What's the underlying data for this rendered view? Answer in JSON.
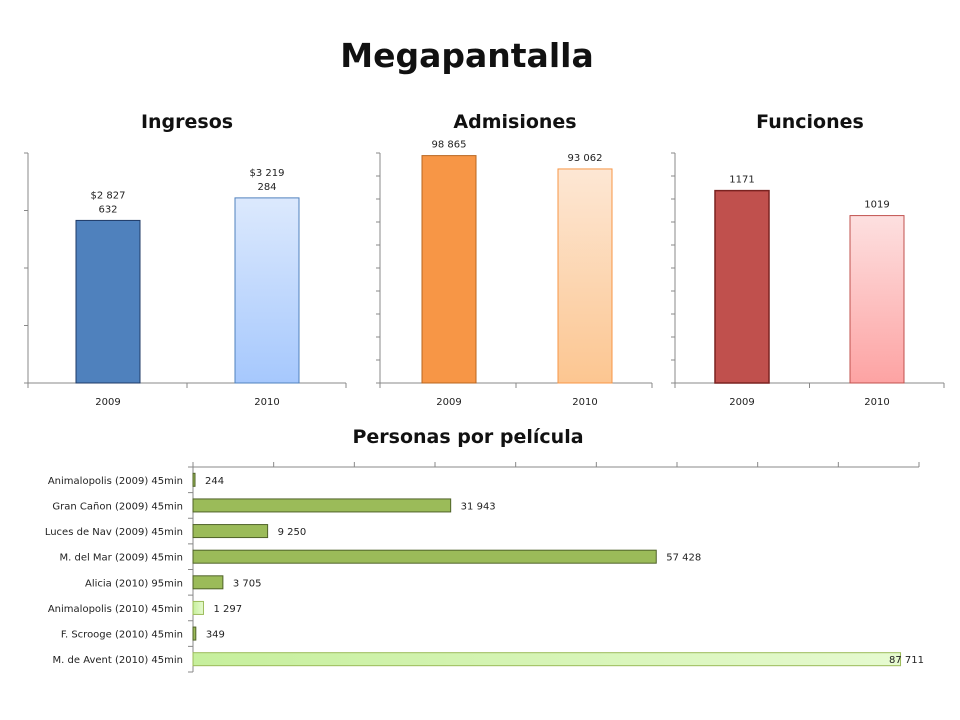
{
  "title": "Megapantalla",
  "chart_data": [
    {
      "type": "bar",
      "title": "Ingresos",
      "categories": [
        "2009",
        "2010"
      ],
      "values": [
        2827632,
        3219284
      ],
      "value_labels": [
        "$2 827\n632",
        "$3 219\n284"
      ],
      "ylim": [
        0,
        4000000
      ],
      "colors": [
        "#4f81bd",
        "#a6c8fd"
      ]
    },
    {
      "type": "bar",
      "title": "Admisiones",
      "categories": [
        "2009",
        "2010"
      ],
      "values": [
        98865,
        93062
      ],
      "value_labels": [
        "98 865",
        "93 062"
      ],
      "ylim": [
        0,
        100000
      ],
      "colors": [
        "#f79646",
        "#fcc691"
      ]
    },
    {
      "type": "bar",
      "title": "Funciones",
      "categories": [
        "2009",
        "2010"
      ],
      "values": [
        1171,
        1019
      ],
      "value_labels": [
        "1171",
        "1019"
      ],
      "ylim": [
        0,
        1400
      ],
      "colors": [
        "#c0504d",
        "#fda3a3"
      ]
    },
    {
      "type": "bar",
      "orientation": "horizontal",
      "title": "Personas por película",
      "categories": [
        "Animalopolis (2009) 45min",
        "Gran Cañon (2009) 45min",
        "Luces de Nav (2009) 45min",
        "M. del Mar (2009) 45min",
        "Alicia (2010) 95min",
        "Animalopolis (2010) 45min",
        "F. Scrooge (2010) 45min",
        "M. de Avent (2010) 45min"
      ],
      "values": [
        244,
        31943,
        9250,
        57428,
        3705,
        1297,
        349,
        87711
      ],
      "value_labels": [
        "244",
        "31 943",
        "9 250",
        "57 428",
        "3 705",
        "1 297",
        "349",
        "87 711"
      ],
      "xlim": [
        0,
        90000
      ],
      "colors": [
        "#9bbb59",
        "#9bbb59",
        "#9bbb59",
        "#9bbb59",
        "#9bbb59",
        "#d7f5b0",
        "#9bbb59",
        "#d7f5b0"
      ]
    }
  ]
}
